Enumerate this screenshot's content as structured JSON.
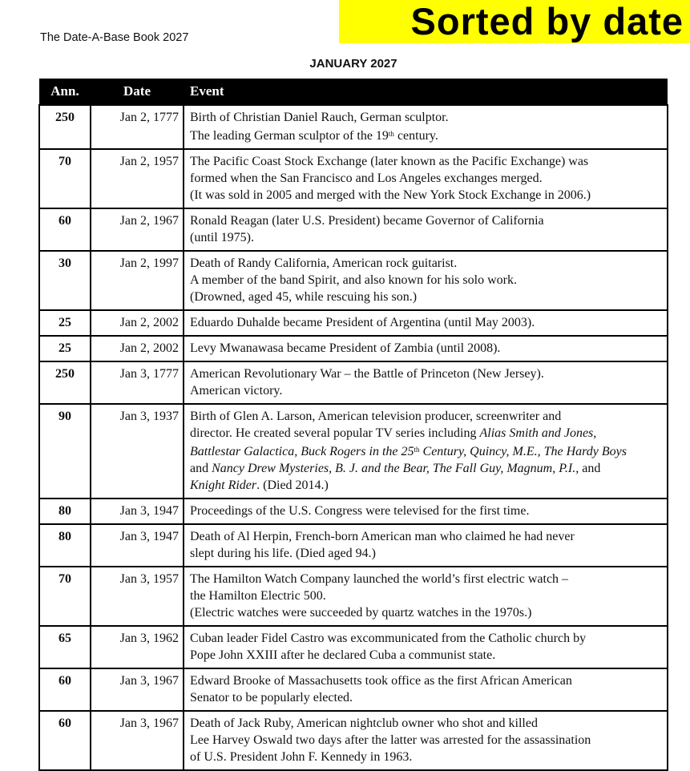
{
  "header": {
    "book_title": "The Date-A-Base Book 2027",
    "banner": "Sorted by date",
    "banner_color": "#ffff00",
    "month": "JANUARY 2027"
  },
  "table": {
    "columns": [
      "Ann.",
      "Date",
      "Event"
    ],
    "rows": [
      {
        "ann": "250",
        "date": "Jan 2, 1777",
        "lines": [
          [
            {
              "t": "Birth of Christian Daniel Rauch, German sculptor."
            }
          ],
          [
            {
              "t": "The leading German sculptor of the 19"
            },
            {
              "t": "th",
              "s": "sup"
            },
            {
              "t": " century."
            }
          ]
        ]
      },
      {
        "ann": "70",
        "date": "Jan 2, 1957",
        "lines": [
          [
            {
              "t": "The Pacific Coast Stock Exchange (later known as the Pacific Exchange) was"
            }
          ],
          [
            {
              "t": "formed when the San Francisco and Los Angeles exchanges merged."
            }
          ],
          [
            {
              "t": "(It was sold in 2005 and merged with the New York Stock Exchange in 2006.)"
            }
          ]
        ]
      },
      {
        "ann": "60",
        "date": "Jan 2, 1967",
        "lines": [
          [
            {
              "t": "Ronald Reagan (later U.S. President) became Governor of California"
            }
          ],
          [
            {
              "t": "(until 1975)."
            }
          ]
        ]
      },
      {
        "ann": "30",
        "date": "Jan 2, 1997",
        "lines": [
          [
            {
              "t": "Death of Randy California, American rock guitarist."
            }
          ],
          [
            {
              "t": "A member of the band Spirit, and also known for his solo work."
            }
          ],
          [
            {
              "t": "(Drowned, aged 45, while rescuing his son.)"
            }
          ]
        ]
      },
      {
        "ann": "25",
        "date": "Jan 2, 2002",
        "lines": [
          [
            {
              "t": "Eduardo Duhalde became President of Argentina (until May 2003)."
            }
          ]
        ]
      },
      {
        "ann": "25",
        "date": "Jan 2, 2002",
        "lines": [
          [
            {
              "t": "Levy Mwanawasa became President of Zambia (until 2008)."
            }
          ]
        ]
      },
      {
        "ann": "250",
        "date": "Jan 3, 1777",
        "lines": [
          [
            {
              "t": "American Revolutionary War – the Battle of Princeton (New Jersey)."
            }
          ],
          [
            {
              "t": "American victory."
            }
          ]
        ]
      },
      {
        "ann": "90",
        "date": "Jan 3, 1937",
        "lines": [
          [
            {
              "t": "Birth of Glen A. Larson, American television producer, screenwriter and"
            }
          ],
          [
            {
              "t": "director. He created several popular TV series including "
            },
            {
              "t": "Alias Smith and Jones,",
              "s": "i"
            }
          ],
          [
            {
              "t": "Battlestar Galactica, Buck Rogers in the 25",
              "s": "i"
            },
            {
              "t": "th",
              "s": "sup"
            },
            {
              "t": " Century, Quincy, M.E., The Hardy Boys",
              "s": "i"
            }
          ],
          [
            {
              "t": "and "
            },
            {
              "t": "Nancy Drew Mysteries, B. J. and the Bear, The Fall Guy, Magnum, P.I.,",
              "s": "i"
            },
            {
              "t": " and"
            }
          ],
          [
            {
              "t": "Knight Rider",
              "s": "i"
            },
            {
              "t": ". (Died 2014.)"
            }
          ]
        ]
      },
      {
        "ann": "80",
        "date": "Jan 3, 1947",
        "lines": [
          [
            {
              "t": "Proceedings of the U.S. Congress were televised for the first time."
            }
          ]
        ]
      },
      {
        "ann": "80",
        "date": "Jan 3, 1947",
        "lines": [
          [
            {
              "t": "Death of Al Herpin, French-born American man who claimed he had never"
            }
          ],
          [
            {
              "t": "slept during his life. (Died aged 94.)"
            }
          ]
        ]
      },
      {
        "ann": "70",
        "date": "Jan 3, 1957",
        "lines": [
          [
            {
              "t": "The Hamilton Watch Company launched the world’s first electric watch –"
            }
          ],
          [
            {
              "t": "the Hamilton Electric 500."
            }
          ],
          [
            {
              "t": "(Electric watches were succeeded by quartz watches in the 1970s.)"
            }
          ]
        ]
      },
      {
        "ann": "65",
        "date": "Jan 3, 1962",
        "lines": [
          [
            {
              "t": "Cuban leader Fidel Castro was excommunicated from the Catholic church by"
            }
          ],
          [
            {
              "t": "Pope John XXIII after he declared Cuba a communist state."
            }
          ]
        ]
      },
      {
        "ann": "60",
        "date": "Jan 3, 1967",
        "lines": [
          [
            {
              "t": "Edward Brooke of Massachusetts took office as the first African American"
            }
          ],
          [
            {
              "t": "Senator to be popularly elected."
            }
          ]
        ]
      },
      {
        "ann": "60",
        "date": "Jan 3, 1967",
        "lines": [
          [
            {
              "t": "Death of Jack Ruby, American nightclub owner who shot and killed"
            }
          ],
          [
            {
              "t": "Lee Harvey Oswald two days after the latter was arrested for the assassination"
            }
          ],
          [
            {
              "t": "of U.S. President John F. Kennedy in 1963."
            }
          ]
        ]
      }
    ]
  }
}
